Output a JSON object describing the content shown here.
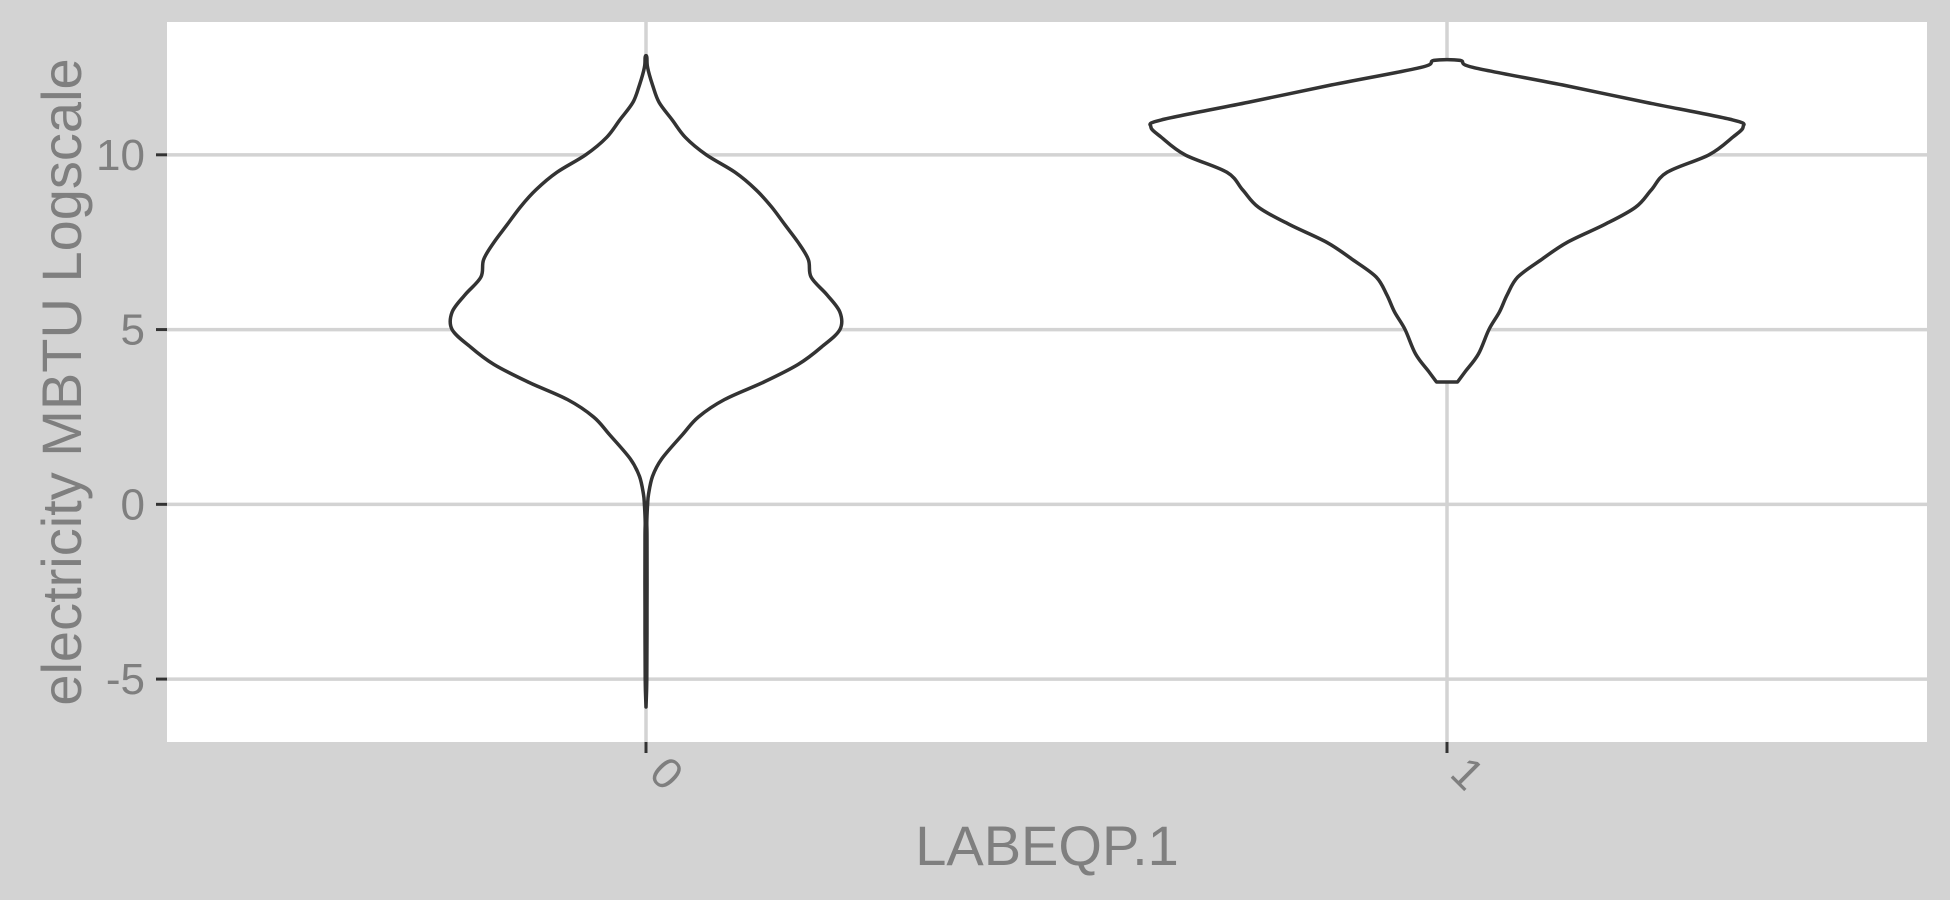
{
  "chart_data": {
    "type": "violin",
    "xlabel": "LABEQP.1",
    "ylabel": "electricity MBTU Logscale",
    "categories": [
      "0",
      "1"
    ],
    "yticks": [
      -5,
      0,
      5,
      10
    ],
    "ylim": [
      -6.8,
      13.8
    ],
    "grid": true,
    "legend": "none",
    "colors": {
      "background": "#d3d3d3",
      "panel": "#ffffff",
      "grid": "#d3d3d3",
      "outline": "#333333",
      "text": "#7f7f7f"
    },
    "series": [
      {
        "category": "0",
        "density_half_width": [
          [
            -5.8,
            0.0
          ],
          [
            -5.0,
            0.003
          ],
          [
            -3.0,
            0.004
          ],
          [
            -1.0,
            0.004
          ],
          [
            -0.5,
            0.003
          ],
          [
            0.0,
            0.006
          ],
          [
            0.3,
            0.01
          ],
          [
            0.8,
            0.025
          ],
          [
            1.3,
            0.06
          ],
          [
            2.0,
            0.14
          ],
          [
            2.5,
            0.2
          ],
          [
            3.0,
            0.3
          ],
          [
            3.5,
            0.45
          ],
          [
            4.0,
            0.58
          ],
          [
            4.5,
            0.67
          ],
          [
            5.0,
            0.74
          ],
          [
            5.5,
            0.74
          ],
          [
            6.0,
            0.69
          ],
          [
            6.5,
            0.63
          ],
          [
            7.0,
            0.62
          ],
          [
            7.5,
            0.58
          ],
          [
            8.0,
            0.53
          ],
          [
            8.5,
            0.48
          ],
          [
            9.0,
            0.42
          ],
          [
            9.5,
            0.34
          ],
          [
            10.0,
            0.23
          ],
          [
            10.5,
            0.15
          ],
          [
            11.0,
            0.1
          ],
          [
            11.5,
            0.05
          ],
          [
            12.0,
            0.025
          ],
          [
            12.5,
            0.006
          ],
          [
            12.8,
            0.003
          ]
        ]
      },
      {
        "category": "1",
        "density_half_width": [
          [
            3.5,
            0.04
          ],
          [
            3.8,
            0.07
          ],
          [
            4.3,
            0.12
          ],
          [
            5.0,
            0.16
          ],
          [
            5.5,
            0.2
          ],
          [
            6.0,
            0.23
          ],
          [
            6.5,
            0.27
          ],
          [
            7.0,
            0.36
          ],
          [
            7.5,
            0.46
          ],
          [
            8.0,
            0.6
          ],
          [
            8.5,
            0.72
          ],
          [
            9.0,
            0.78
          ],
          [
            9.5,
            0.84
          ],
          [
            10.0,
            1.0
          ],
          [
            10.5,
            1.09
          ],
          [
            10.8,
            1.13
          ],
          [
            11.0,
            1.09
          ],
          [
            11.5,
            0.76
          ],
          [
            12.0,
            0.44
          ],
          [
            12.5,
            0.1
          ],
          [
            12.7,
            0.05
          ]
        ]
      }
    ]
  }
}
